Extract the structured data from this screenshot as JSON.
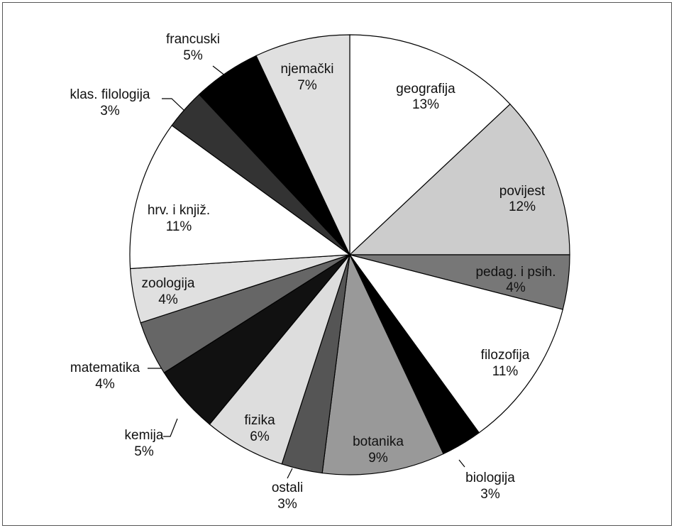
{
  "chart_data": {
    "type": "pie",
    "title": "",
    "slices": [
      {
        "label": "geografija",
        "pct_label": "13%",
        "value": 13,
        "color": "#ffffff"
      },
      {
        "label": "povijest",
        "pct_label": "12%",
        "value": 12,
        "color": "#cccccc"
      },
      {
        "label": "pedag. i psih.",
        "pct_label": "4%",
        "value": 4,
        "color": "#777777"
      },
      {
        "label": "filozofija",
        "pct_label": "11%",
        "value": 11,
        "color": "#ffffff"
      },
      {
        "label": "biologija",
        "pct_label": "3%",
        "value": 3,
        "color": "#000000"
      },
      {
        "label": "botanika",
        "pct_label": "9%",
        "value": 9,
        "color": "#999999"
      },
      {
        "label": "ostali",
        "pct_label": "3%",
        "value": 3,
        "color": "#555555"
      },
      {
        "label": "fizika",
        "pct_label": "6%",
        "value": 6,
        "color": "#dddddd"
      },
      {
        "label": "kemija",
        "pct_label": "5%",
        "value": 5,
        "color": "#111111"
      },
      {
        "label": "matematika",
        "pct_label": "4%",
        "value": 4,
        "color": "#666666"
      },
      {
        "label": "zoologija",
        "pct_label": "4%",
        "value": 4,
        "color": "#e0e0e0"
      },
      {
        "label": "hrv. i knjiž.",
        "pct_label": "11%",
        "value": 11,
        "color": "#ffffff"
      },
      {
        "label": "klas. filologija",
        "pct_label": "3%",
        "value": 3,
        "color": "#333333"
      },
      {
        "label": "francuski",
        "pct_label": "5%",
        "value": 5,
        "color": "#000000"
      },
      {
        "label": "njemački",
        "pct_label": "7%",
        "value": 7,
        "color": "#e0e0e0"
      }
    ]
  }
}
